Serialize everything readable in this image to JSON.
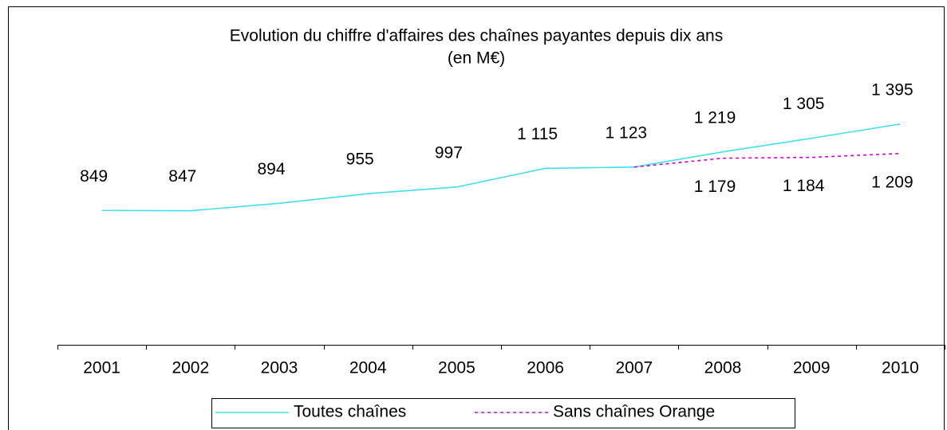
{
  "chart_data": {
    "type": "line",
    "title": "Evolution du chiffre d'affaires des chaînes payantes depuis dix ans",
    "subtitle": "(en M€)",
    "categories": [
      "2001",
      "2002",
      "2003",
      "2004",
      "2005",
      "2006",
      "2007",
      "2008",
      "2009",
      "2010"
    ],
    "series": [
      {
        "name": "Toutes chaînes",
        "color": "#3fe0ef",
        "dash": "solid",
        "values": [
          849,
          847,
          894,
          955,
          997,
          1115,
          1123,
          1219,
          1305,
          1395
        ],
        "value_labels": [
          "849",
          "847",
          "894",
          "955",
          "997",
          "1 115",
          "1 123",
          "1 219",
          "1 305",
          "1 395"
        ],
        "label_position": "above"
      },
      {
        "name": "Sans chaînes Orange",
        "color": "#cc00cc",
        "dash": "dotted",
        "values": [
          null,
          null,
          null,
          null,
          null,
          null,
          1123,
          1179,
          1184,
          1209
        ],
        "value_labels": [
          null,
          null,
          null,
          null,
          null,
          null,
          null,
          "1 179",
          "1 184",
          "1 209"
        ],
        "label_position": "below"
      }
    ],
    "ylim": [
      0,
      1600
    ],
    "legend": "bottom"
  }
}
